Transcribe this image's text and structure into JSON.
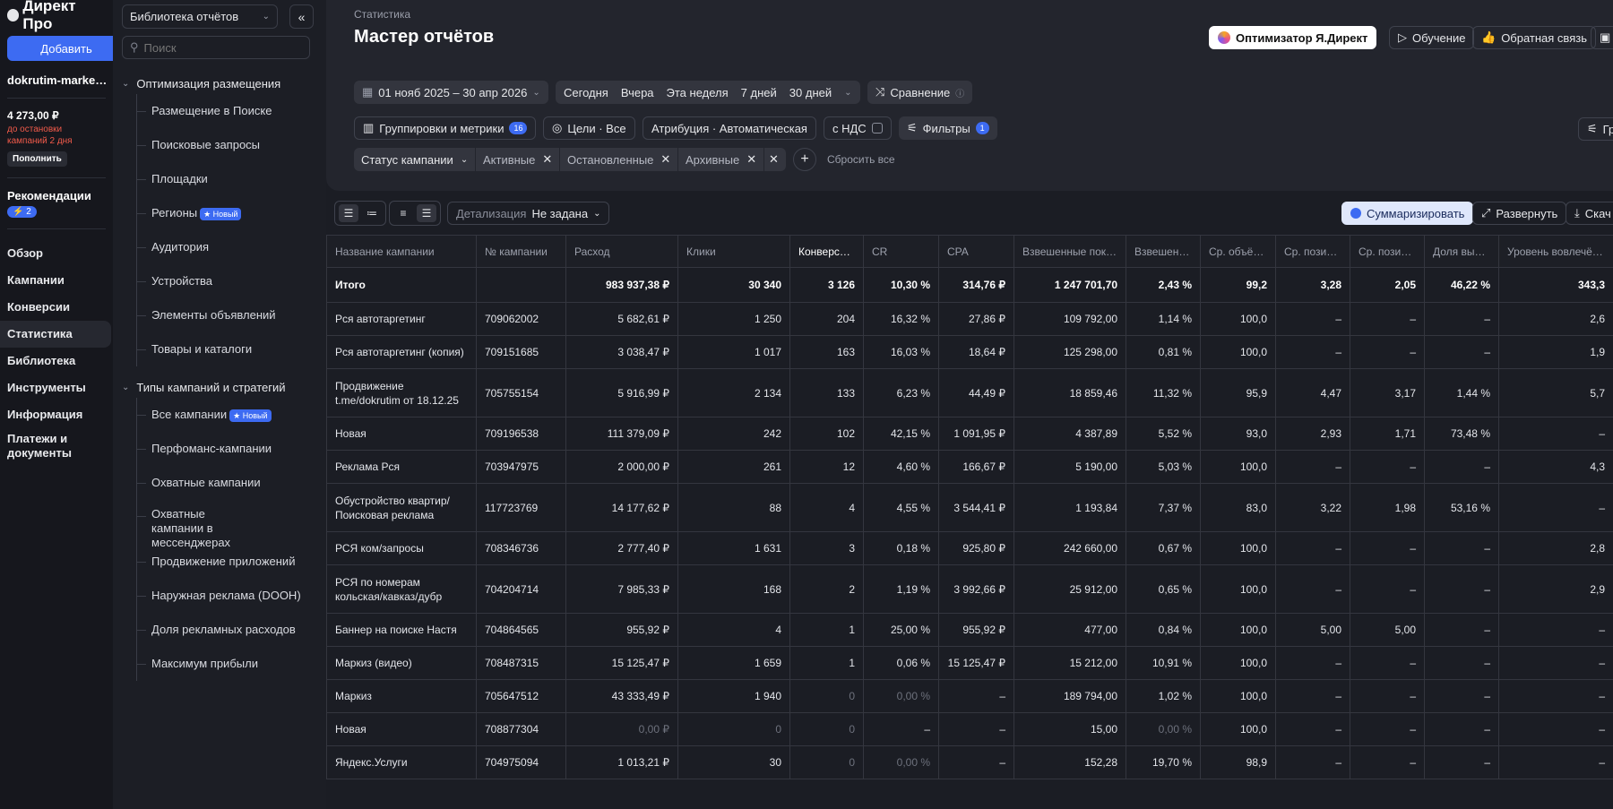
{
  "app": {
    "logo": "Директ Про",
    "add_button": "Добавить",
    "account": "dokrutim-marke…",
    "balance": "4 273,00 ₽",
    "balance_note": "до остановки кампаний 2 дня",
    "topup_button": "Пополнить",
    "recommendations_label": "Рекомендации",
    "recommendations_badge": "⚡ 2"
  },
  "nav": {
    "items": [
      {
        "label": "Обзор"
      },
      {
        "label": "Кампании"
      },
      {
        "label": "Конверсии"
      },
      {
        "label": "Статистика"
      },
      {
        "label": "Библиотека"
      },
      {
        "label": "Инструменты"
      },
      {
        "label": "Информация"
      },
      {
        "label": "Платежи и документы"
      }
    ]
  },
  "library": {
    "selector": "Библиотека отчётов",
    "search_placeholder": "Поиск",
    "groups": [
      {
        "title": "Оптимизация размещения",
        "items": [
          {
            "label": "Размещение в Поиске",
            "badge": ""
          },
          {
            "label": "Поисковые запросы",
            "badge": ""
          },
          {
            "label": "Площадки",
            "badge": ""
          },
          {
            "label": "Регионы",
            "badge": "★ Новый"
          },
          {
            "label": "Аудитория",
            "badge": ""
          },
          {
            "label": "Устройства",
            "badge": ""
          },
          {
            "label": "Элементы объявлений",
            "badge": ""
          },
          {
            "label": "Товары и каталоги",
            "badge": ""
          }
        ]
      },
      {
        "title": "Типы кампаний и стратегий",
        "items": [
          {
            "label": "Все кампании",
            "badge": "★ Новый"
          },
          {
            "label": "Перфоманс-кампании",
            "badge": ""
          },
          {
            "label": "Охватные кампании",
            "badge": ""
          },
          {
            "label": "Охватные кампании в мессенджерах",
            "badge": ""
          },
          {
            "label": "Продвижение приложений",
            "badge": ""
          },
          {
            "label": "Наружная реклама (DOOH)",
            "badge": ""
          },
          {
            "label": "Доля рекламных расходов",
            "badge": ""
          },
          {
            "label": "Максимум прибыли",
            "badge": ""
          }
        ]
      }
    ]
  },
  "header": {
    "breadcrumb": "Статистика",
    "title": "Мастер отчётов",
    "optimizer": "Оптимизатор Я.Директ",
    "learning": "Обучение",
    "feedback": "Обратная связь"
  },
  "filters": {
    "date_range": "01 нояб 2025 – 30 апр 2026",
    "quick": [
      "Сегодня",
      "Вчера",
      "Эта неделя",
      "7 дней",
      "30 дней"
    ],
    "compare": "Сравнение",
    "groupings": "Группировки и метрики",
    "groupings_count": "16",
    "goals": "Цели · Все",
    "attribution": "Атрибуция · Автоматическая",
    "vat": "с НДС",
    "filters_btn": "Фильтры",
    "filters_count": "1",
    "right_cut": "Гр",
    "status_label": "Статус кампании",
    "status_values": [
      "Активные",
      "Остановленные",
      "Архивные"
    ],
    "reset": "Сбросить все"
  },
  "tablebar": {
    "detail_label": "Детализация",
    "detail_value": "Не задана",
    "summarize": "Суммаризировать",
    "expand": "Развернуть",
    "download": "Скач"
  },
  "table": {
    "columns": [
      "Название кампании",
      "№ кампании",
      "Расход",
      "Клики",
      "Конверсии↓",
      "CR",
      "CPA",
      "Взвешенные пок…",
      "Взвешен…",
      "Ср. объё…",
      "Ср. позиц…",
      "Ср. позиц…",
      "Доля выи…",
      "Уровень вовлечё…"
    ],
    "total": [
      "Итого",
      "",
      "983 937,38 ₽",
      "30 340",
      "3 126",
      "10,30 %",
      "314,76 ₽",
      "1 247 701,70",
      "2,43 %",
      "99,2",
      "3,28",
      "2,05",
      "46,22 %",
      "343,3"
    ],
    "rows": [
      [
        "Рся автотаргетинг",
        "709062002",
        "5 682,61 ₽",
        "1 250",
        "204",
        "16,32 %",
        "27,86 ₽",
        "109 792,00",
        "1,14 %",
        "100,0",
        "–",
        "–",
        "–",
        "2,6"
      ],
      [
        "Рся автотаргетинг (копия)",
        "709151685",
        "3 038,47 ₽",
        "1 017",
        "163",
        "16,03 %",
        "18,64 ₽",
        "125 298,00",
        "0,81 %",
        "100,0",
        "–",
        "–",
        "–",
        "1,9"
      ],
      [
        "Продвижение t.me/dokrutim от 18.12.25",
        "705755154",
        "5 916,99 ₽",
        "2 134",
        "133",
        "6,23 %",
        "44,49 ₽",
        "18 859,46",
        "11,32 %",
        "95,9",
        "4,47",
        "3,17",
        "1,44 %",
        "5,7"
      ],
      [
        "Новая",
        "709196538",
        "111 379,09 ₽",
        "242",
        "102",
        "42,15 %",
        "1 091,95 ₽",
        "4 387,89",
        "5,52 %",
        "93,0",
        "2,93",
        "1,71",
        "73,48 %",
        "–"
      ],
      [
        "Реклама Рся",
        "703947975",
        "2 000,00 ₽",
        "261",
        "12",
        "4,60 %",
        "166,67 ₽",
        "5 190,00",
        "5,03 %",
        "100,0",
        "–",
        "–",
        "–",
        "4,3"
      ],
      [
        "Обустройство квартир/ Поисковая реклама",
        "117723769",
        "14 177,62 ₽",
        "88",
        "4",
        "4,55 %",
        "3 544,41 ₽",
        "1 193,84",
        "7,37 %",
        "83,0",
        "3,22",
        "1,98",
        "53,16 %",
        "–"
      ],
      [
        "РСЯ ком/запросы",
        "708346736",
        "2 777,40 ₽",
        "1 631",
        "3",
        "0,18 %",
        "925,80 ₽",
        "242 660,00",
        "0,67 %",
        "100,0",
        "–",
        "–",
        "–",
        "2,8"
      ],
      [
        "РСЯ по номерам кольская/кавказ/дубр",
        "704204714",
        "7 985,33 ₽",
        "168",
        "2",
        "1,19 %",
        "3 992,66 ₽",
        "25 912,00",
        "0,65 %",
        "100,0",
        "–",
        "–",
        "–",
        "2,9"
      ],
      [
        "Баннер на поиске Настя",
        "704864565",
        "955,92 ₽",
        "4",
        "1",
        "25,00 %",
        "955,92 ₽",
        "477,00",
        "0,84 %",
        "100,0",
        "5,00",
        "5,00",
        "–",
        "–"
      ],
      [
        "Маркиз (видео)",
        "708487315",
        "15 125,47 ₽",
        "1 659",
        "1",
        "0,06 %",
        "15 125,47 ₽",
        "15 212,00",
        "10,91 %",
        "100,0",
        "–",
        "–",
        "–",
        "–"
      ],
      [
        "Маркиз",
        "705647512",
        "43 333,49 ₽",
        "1 940",
        "0",
        "0,00 %",
        "–",
        "189 794,00",
        "1,02 %",
        "100,0",
        "–",
        "–",
        "–",
        "–"
      ],
      [
        "Новая",
        "708877304",
        "0,00 ₽",
        "0",
        "0",
        "–",
        "–",
        "15,00",
        "0,00 %",
        "100,0",
        "–",
        "–",
        "–",
        "–"
      ],
      [
        "Яндекс.Услуги",
        "704975094",
        "1 013,21 ₽",
        "30",
        "0",
        "0,00 %",
        "–",
        "152,28",
        "19,70 %",
        "98,9",
        "–",
        "–",
        "–",
        "–"
      ]
    ]
  }
}
